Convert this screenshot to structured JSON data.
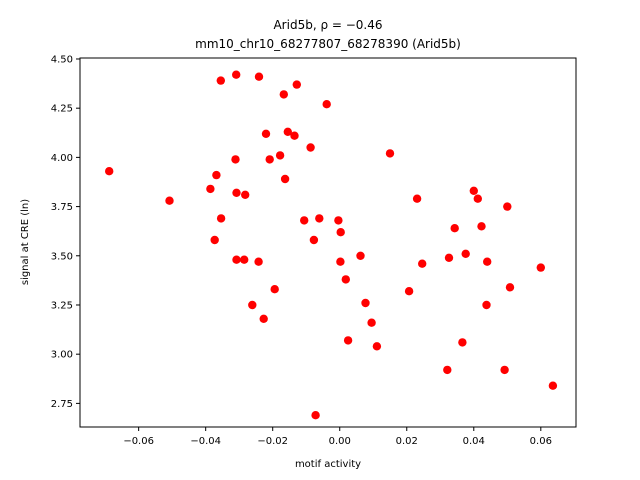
{
  "chart_data": {
    "type": "scatter",
    "title_line1": "Arid5b, ρ = −0.46",
    "title_line2": "mm10_chr10_68277807_68278390 (Arid5b)",
    "xlabel": "motif activity",
    "ylabel": "signal at CRE (ln)",
    "xlim": [
      -0.0775,
      0.0705
    ],
    "ylim": [
      2.63,
      4.505
    ],
    "xticks": [
      -0.06,
      -0.04,
      -0.02,
      0.0,
      0.02,
      0.04,
      0.06
    ],
    "xtick_labels": [
      "−0.06",
      "−0.04",
      "−0.02",
      "0.00",
      "0.02",
      "0.04",
      "0.06"
    ],
    "yticks": [
      2.75,
      3.0,
      3.25,
      3.5,
      3.75,
      4.0,
      4.25,
      4.5
    ],
    "ytick_labels": [
      "2.75",
      "3.00",
      "3.25",
      "3.50",
      "3.75",
      "4.00",
      "4.25",
      "4.50"
    ],
    "grid": false,
    "marker_color": "#ff0000",
    "points": [
      {
        "x": -0.0688,
        "y": 3.93
      },
      {
        "x": -0.0508,
        "y": 3.78
      },
      {
        "x": -0.0386,
        "y": 3.84
      },
      {
        "x": -0.0373,
        "y": 3.58
      },
      {
        "x": -0.0368,
        "y": 3.91
      },
      {
        "x": -0.0355,
        "y": 4.39
      },
      {
        "x": -0.0354,
        "y": 3.69
      },
      {
        "x": -0.0311,
        "y": 3.99
      },
      {
        "x": -0.0309,
        "y": 4.42
      },
      {
        "x": -0.0308,
        "y": 3.82
      },
      {
        "x": -0.0308,
        "y": 3.48
      },
      {
        "x": -0.0285,
        "y": 3.48
      },
      {
        "x": -0.0282,
        "y": 3.81
      },
      {
        "x": -0.0261,
        "y": 3.25
      },
      {
        "x": -0.0242,
        "y": 3.47
      },
      {
        "x": -0.0241,
        "y": 4.41
      },
      {
        "x": -0.0227,
        "y": 3.18
      },
      {
        "x": -0.022,
        "y": 4.12
      },
      {
        "x": -0.0209,
        "y": 3.99
      },
      {
        "x": -0.0194,
        "y": 3.33
      },
      {
        "x": -0.0178,
        "y": 4.01
      },
      {
        "x": -0.0167,
        "y": 4.32
      },
      {
        "x": -0.0163,
        "y": 3.89
      },
      {
        "x": -0.0155,
        "y": 4.13
      },
      {
        "x": -0.0135,
        "y": 4.11
      },
      {
        "x": -0.0128,
        "y": 4.37
      },
      {
        "x": -0.0106,
        "y": 3.68
      },
      {
        "x": -0.0087,
        "y": 4.05
      },
      {
        "x": -0.0077,
        "y": 3.58
      },
      {
        "x": -0.0072,
        "y": 2.69
      },
      {
        "x": -0.0061,
        "y": 3.69
      },
      {
        "x": -0.0039,
        "y": 4.27
      },
      {
        "x": -0.0004,
        "y": 3.68
      },
      {
        "x": 0.0002,
        "y": 3.47
      },
      {
        "x": 0.0003,
        "y": 3.62
      },
      {
        "x": 0.0018,
        "y": 3.38
      },
      {
        "x": 0.0025,
        "y": 3.07
      },
      {
        "x": 0.0062,
        "y": 3.5
      },
      {
        "x": 0.0077,
        "y": 3.26
      },
      {
        "x": 0.0095,
        "y": 3.16
      },
      {
        "x": 0.0111,
        "y": 3.04
      },
      {
        "x": 0.015,
        "y": 4.02
      },
      {
        "x": 0.0207,
        "y": 3.32
      },
      {
        "x": 0.0231,
        "y": 3.79
      },
      {
        "x": 0.0246,
        "y": 3.46
      },
      {
        "x": 0.0321,
        "y": 2.92
      },
      {
        "x": 0.0326,
        "y": 3.49
      },
      {
        "x": 0.0343,
        "y": 3.64
      },
      {
        "x": 0.0366,
        "y": 3.06
      },
      {
        "x": 0.0376,
        "y": 3.51
      },
      {
        "x": 0.04,
        "y": 3.83
      },
      {
        "x": 0.0412,
        "y": 3.79
      },
      {
        "x": 0.0423,
        "y": 3.65
      },
      {
        "x": 0.0438,
        "y": 3.25
      },
      {
        "x": 0.044,
        "y": 3.47
      },
      {
        "x": 0.0492,
        "y": 2.92
      },
      {
        "x": 0.05,
        "y": 3.75
      },
      {
        "x": 0.0508,
        "y": 3.34
      },
      {
        "x": 0.06,
        "y": 3.44
      },
      {
        "x": 0.0636,
        "y": 2.84
      }
    ]
  }
}
